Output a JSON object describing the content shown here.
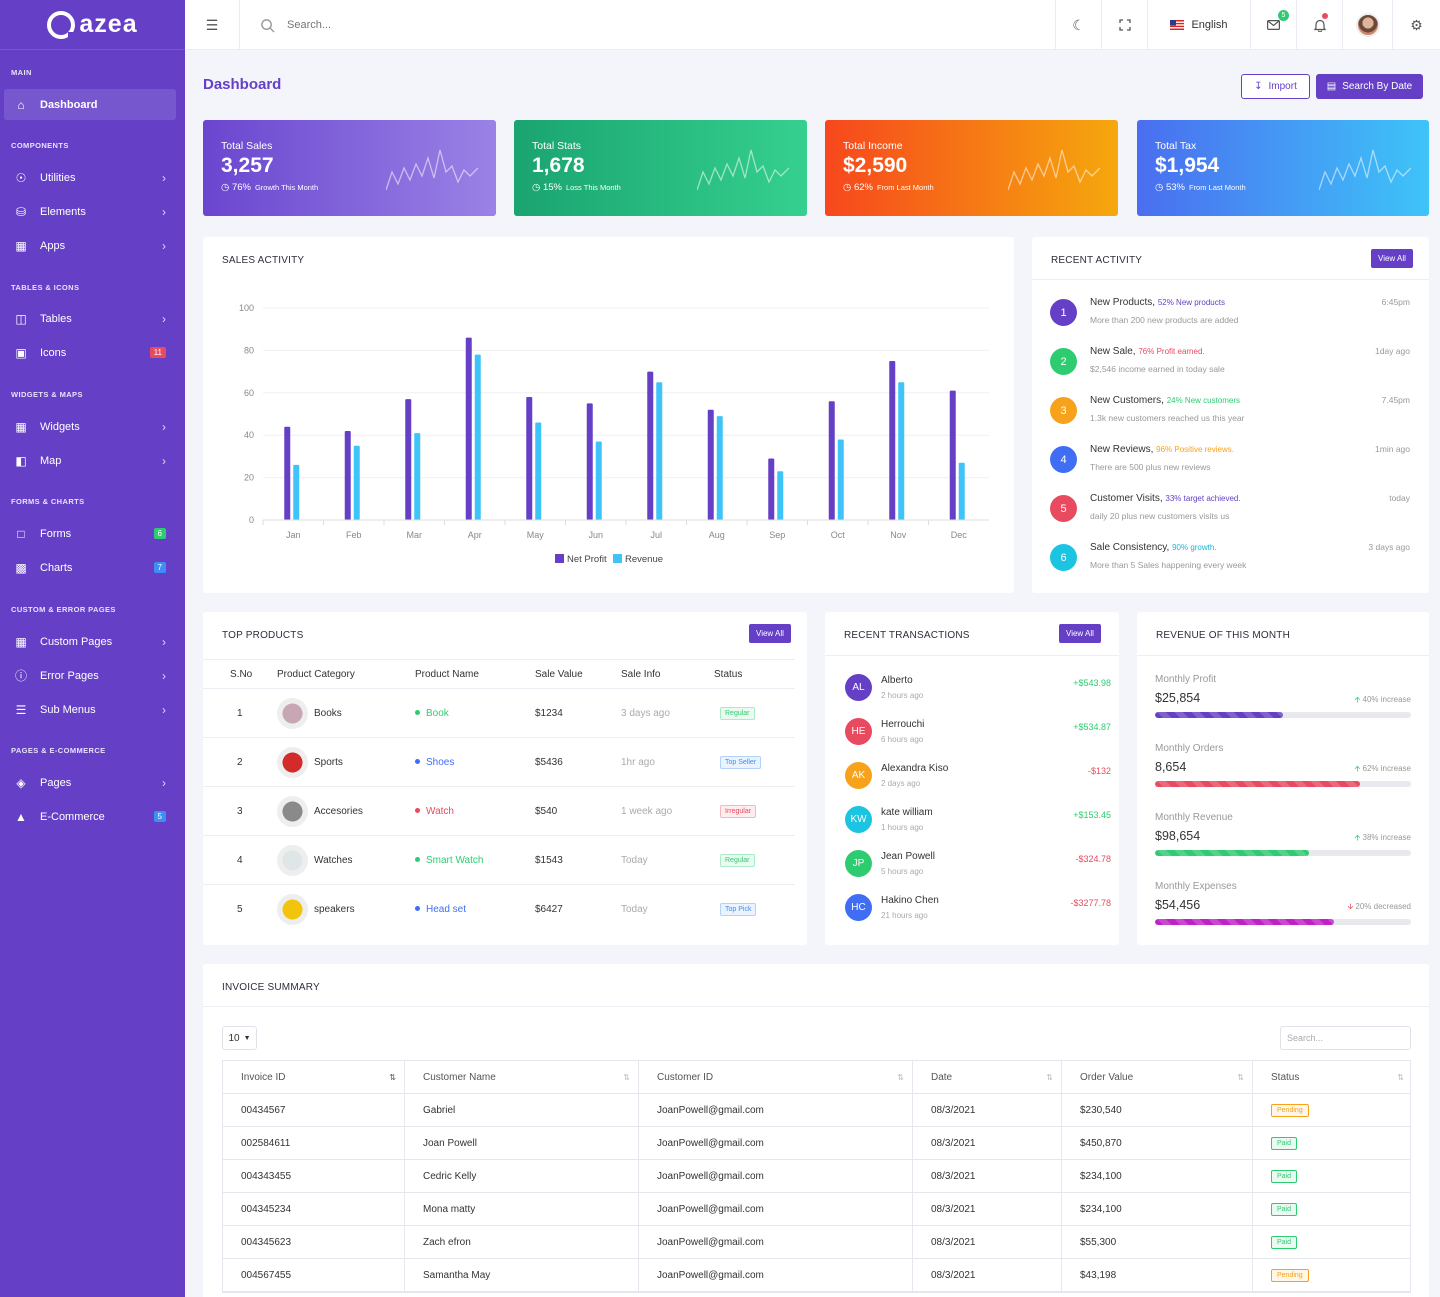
{
  "brand": {
    "name": "azea"
  },
  "sidebar": {
    "sections": [
      "MAIN",
      "COMPONENTS",
      "TABLES & ICONS",
      "WIDGETS & MAPS",
      "FORMS & CHARTS",
      "CUSTOM & ERROR PAGES",
      "PAGES & E-COMMERCE"
    ],
    "items": [
      {
        "label": "Dashboard",
        "icon": "home-icon"
      },
      {
        "label": "Utilities",
        "icon": "compass-icon"
      },
      {
        "label": "Elements",
        "icon": "database-icon"
      },
      {
        "label": "Apps",
        "icon": "grid-icon"
      },
      {
        "label": "Tables",
        "icon": "table-icon"
      },
      {
        "label": "Icons",
        "icon": "gift-icon",
        "badge": "11",
        "badge_color": "#e84a5f"
      },
      {
        "label": "Widgets",
        "icon": "grid-icon"
      },
      {
        "label": "Map",
        "icon": "map-icon"
      },
      {
        "label": "Forms",
        "icon": "file-icon",
        "badge": "6",
        "badge_color": "#2ecc71"
      },
      {
        "label": "Charts",
        "icon": "chart-icon",
        "badge": "7",
        "badge_color": "#3f8ef5"
      },
      {
        "label": "Custom Pages",
        "icon": "grid-icon"
      },
      {
        "label": "Error Pages",
        "icon": "alert-icon"
      },
      {
        "label": "Sub Menus",
        "icon": "menu-icon"
      },
      {
        "label": "Pages",
        "icon": "layers-icon"
      },
      {
        "label": "E-Commerce",
        "icon": "bag-icon",
        "badge": "5",
        "badge_color": "#3f8ef5"
      }
    ]
  },
  "topbar": {
    "search_placeholder": "Search...",
    "language": "English",
    "mail_count": "5"
  },
  "page": {
    "title": "Dashboard",
    "import_label": "Import",
    "date_label": "Search By Date"
  },
  "stats": [
    {
      "label": "Total Sales",
      "value": "3,257",
      "pct": "76%",
      "note": "Growth This Month",
      "gradient": [
        "#6a46cf",
        "#9a82e6"
      ]
    },
    {
      "label": "Total Stats",
      "value": "1,678",
      "pct": "15%",
      "note": "Loss This Month",
      "gradient": [
        "#1aa470",
        "#35d08f"
      ]
    },
    {
      "label": "Total Income",
      "value": "$2,590",
      "pct": "62%",
      "note": "From Last Month",
      "gradient": [
        "#f7471d",
        "#f5a80d"
      ]
    },
    {
      "label": "Total Tax",
      "value": "$1,954",
      "pct": "53%",
      "note": "From Last Month",
      "gradient": [
        "#4a6ef0",
        "#3ec4f8"
      ]
    }
  ],
  "sales": {
    "title": "SALES ACTIVITY"
  },
  "chart_data": {
    "type": "bar",
    "categories": [
      "Jan",
      "Feb",
      "Mar",
      "Apr",
      "May",
      "Jun",
      "Jul",
      "Aug",
      "Sep",
      "Oct",
      "Nov",
      "Dec"
    ],
    "series": [
      {
        "name": "Net Profit",
        "color": "#6540c6",
        "values": [
          44,
          42,
          57,
          86,
          58,
          55,
          70,
          52,
          29,
          56,
          75,
          61
        ]
      },
      {
        "name": "Revenue",
        "color": "#3ec4f8",
        "values": [
          26,
          35,
          41,
          78,
          46,
          37,
          65,
          49,
          23,
          38,
          65,
          27
        ]
      }
    ],
    "ylim": [
      0,
      100
    ],
    "yticks": [
      0,
      20,
      40,
      60,
      80,
      100
    ],
    "grid": true,
    "legend": "bottom"
  },
  "activity": {
    "title": "RECENT ACTIVITY",
    "view_all": "View All",
    "items": [
      {
        "n": "1",
        "title": "New Products,",
        "hl": "52% New products",
        "hl_color": "#6540c6",
        "desc": "More than 200 new products are added",
        "time": "6:45pm",
        "color": "#6540c6"
      },
      {
        "n": "2",
        "title": "New Sale,",
        "hl": "76% Profit earned.",
        "hl_color": "#e84a5f",
        "desc": "$2,546 income earned in today sale",
        "time": "1day ago",
        "color": "#2ecc71"
      },
      {
        "n": "3",
        "title": "New Customers,",
        "hl": "24% New customers",
        "hl_color": "#2ecc71",
        "desc": "1.3k new customers reached us this year",
        "time": "7.45pm",
        "color": "#f7a21b"
      },
      {
        "n": "4",
        "title": "New Reviews,",
        "hl": "96% Positive reviews.",
        "hl_color": "#f7a21b",
        "desc": "There are 500 plus new reviews",
        "time": "1min ago",
        "color": "#3f6ef5"
      },
      {
        "n": "5",
        "title": "Customer Visits,",
        "hl": "33% target achieved.",
        "hl_color": "#6540c6",
        "desc": "daily 20 plus new customers visits us",
        "time": "today",
        "color": "#e84a5f"
      },
      {
        "n": "6",
        "title": "Sale Consistency,",
        "hl": "90% growth.",
        "hl_color": "#1bb8d6",
        "desc": "More than 5 Sales happening every week",
        "time": "3 days ago",
        "color": "#1bc4e0"
      }
    ]
  },
  "products": {
    "title": "TOP PRODUCTS",
    "view_all": "View All",
    "headers": [
      "S.No",
      "Product Category",
      "Product Name",
      "Sale Value",
      "Sale Info",
      "Status"
    ],
    "rows": [
      {
        "no": "1",
        "cat": "Books",
        "name": "Book",
        "dot": "#2ecc71",
        "val": "$1234",
        "info": "3 days ago",
        "status": "Regular",
        "sc": "#2ecc71",
        "img": "#c8a7b5"
      },
      {
        "no": "2",
        "cat": "Sports",
        "name": "Shoes",
        "dot": "#3f6ef5",
        "val": "$5436",
        "info": "1hr ago",
        "status": "Top Seller",
        "sc": "#3f8ef5",
        "img": "#d42a2a"
      },
      {
        "no": "3",
        "cat": "Accesories",
        "name": "Watch",
        "dot": "#e84a5f",
        "val": "$540",
        "info": "1 week ago",
        "status": "Irregular",
        "sc": "#e84a5f",
        "img": "#8a8a8a"
      },
      {
        "no": "4",
        "cat": "Watches",
        "name": "Smart Watch",
        "dot": "#2ecc71",
        "val": "$1543",
        "info": "Today",
        "status": "Regular",
        "sc": "#2ecc71",
        "img": "#dfe6e8"
      },
      {
        "no": "5",
        "cat": "speakers",
        "name": "Head set",
        "dot": "#3f6ef5",
        "val": "$6427",
        "info": "Today",
        "status": "Top Pick",
        "sc": "#3f8ef5",
        "img": "#f2c40c"
      }
    ]
  },
  "transactions": {
    "title": "RECENT TRANSACTIONS",
    "view_all": "View All",
    "rows": [
      {
        "i": "AL",
        "name": "Alberto",
        "time": "2 hours ago",
        "amt": "+$543.98",
        "pos": true,
        "color": "#6540c6"
      },
      {
        "i": "HE",
        "name": "Herrouchi",
        "time": "6 hours ago",
        "amt": "+$534.87",
        "pos": true,
        "color": "#e84a5f"
      },
      {
        "i": "AK",
        "name": "Alexandra Kiso",
        "time": "2 days ago",
        "amt": "-$132",
        "pos": false,
        "color": "#f7a21b"
      },
      {
        "i": "KW",
        "name": "kate william",
        "time": "1 hours ago",
        "amt": "+$153.45",
        "pos": true,
        "color": "#1bc4e0"
      },
      {
        "i": "JP",
        "name": "Jean Powell",
        "time": "5 hours ago",
        "amt": "-$324.78",
        "pos": false,
        "color": "#2ecc71"
      },
      {
        "i": "HC",
        "name": "Hakino Chen",
        "time": "21 hours ago",
        "amt": "-$3277.78",
        "pos": false,
        "color": "#3f6ef5"
      }
    ]
  },
  "revenue": {
    "title": "REVENUE OF THIS MONTH",
    "rows": [
      {
        "label": "Monthly Profit",
        "value": "$25,854",
        "change": "40% increase",
        "up": true,
        "fill": 0.5,
        "color": "#6540c6"
      },
      {
        "label": "Monthly Orders",
        "value": "8,654",
        "change": "62% increase",
        "up": true,
        "fill": 0.8,
        "color": "#e84a5f"
      },
      {
        "label": "Monthly Revenue",
        "value": "$98,654",
        "change": "38% increase",
        "up": true,
        "fill": 0.6,
        "color": "#2ecc71"
      },
      {
        "label": "Monthly Expenses",
        "value": "$54,456",
        "change": "20% decreased",
        "up": false,
        "fill": 0.7,
        "color": "#c21fc9"
      }
    ]
  },
  "invoice": {
    "title": "INVOICE SUMMARY",
    "length": "10",
    "search_placeholder": "Search...",
    "headers": [
      "Invoice ID",
      "Customer Name",
      "Customer ID",
      "Date",
      "Order Value",
      "Status"
    ],
    "rows": [
      [
        "00434567",
        "Gabriel",
        "JoanPowell@gmail.com",
        "08/3/2021",
        "$230,540",
        "Pending"
      ],
      [
        "002584611",
        "Joan Powell",
        "JoanPowell@gmail.com",
        "08/3/2021",
        "$450,870",
        "Paid"
      ],
      [
        "004343455",
        "Cedric Kelly",
        "JoanPowell@gmail.com",
        "08/3/2021",
        "$234,100",
        "Paid"
      ],
      [
        "004345234",
        "Mona matty",
        "JoanPowell@gmail.com",
        "08/3/2021",
        "$234,100",
        "Paid"
      ],
      [
        "004345623",
        "Zach efron",
        "JoanPowell@gmail.com",
        "08/3/2021",
        "$55,300",
        "Paid"
      ],
      [
        "004567455",
        "Samantha May",
        "JoanPowell@gmail.com",
        "08/3/2021",
        "$43,198",
        "Pending"
      ]
    ]
  }
}
